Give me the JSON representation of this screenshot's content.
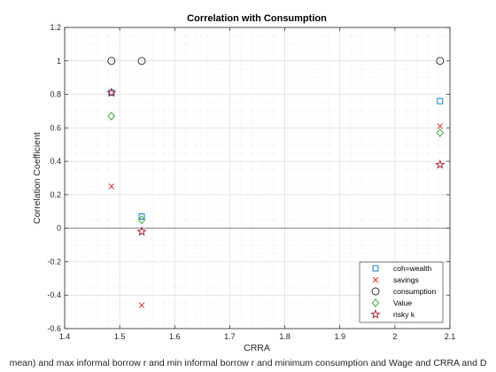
{
  "chart_data": {
    "type": "scatter",
    "title": "Correlation with Consumption",
    "xlabel": "CRRA",
    "ylabel": "Correlation Coefficient",
    "caption": "mean) and max informal borrow r and min informal borrow r and minimum consumption and Wage and CRRA and D",
    "xlim": [
      1.4,
      2.1
    ],
    "ylim": [
      -0.6,
      1.2
    ],
    "xticks": [
      "1.4",
      "1.5",
      "1.6",
      "1.7",
      "1.8",
      "1.9",
      "2",
      "2.1"
    ],
    "yticks": [
      "-0.6",
      "-0.4",
      "-0.2",
      "0",
      "0.2",
      "0.4",
      "0.6",
      "0.8",
      "1",
      "1.2"
    ],
    "grid": "on",
    "minor_grid": "on",
    "legend_position": "bottom-right",
    "zero_line": true,
    "series": [
      {
        "name": "coh=wealth",
        "marker": "square",
        "color": "#0072BD",
        "x": [
          1.485,
          1.54,
          2.082
        ],
        "y": [
          0.81,
          0.07,
          0.76
        ]
      },
      {
        "name": "savings",
        "marker": "x",
        "color": "#D62728",
        "x": [
          1.485,
          1.54,
          2.082
        ],
        "y": [
          0.25,
          -0.46,
          0.61
        ]
      },
      {
        "name": "consumption",
        "marker": "circle",
        "color": "#262626",
        "x": [
          1.485,
          1.54,
          2.082
        ],
        "y": [
          1.0,
          1.0,
          1.0
        ]
      },
      {
        "name": "Value",
        "marker": "diamond",
        "color": "#2CA02C",
        "x": [
          1.485,
          1.54,
          2.082
        ],
        "y": [
          0.67,
          0.05,
          0.57
        ]
      },
      {
        "name": "risky k",
        "marker": "star",
        "color": "#A2142F",
        "x": [
          1.485,
          1.54,
          2.082
        ],
        "y": [
          0.81,
          -0.02,
          0.38
        ]
      }
    ]
  }
}
